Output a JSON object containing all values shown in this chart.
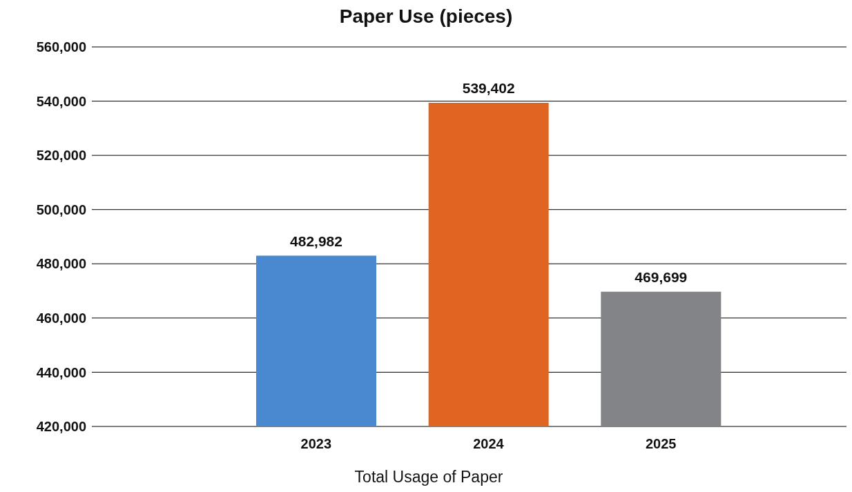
{
  "chart_data": {
    "type": "bar",
    "title": "Paper Use (pieces)",
    "xlabel": "Total Usage of Paper",
    "categories": [
      "2023",
      "2024",
      "2025"
    ],
    "values": [
      482982,
      539402,
      469699
    ],
    "value_labels": [
      "482,982",
      "539,402",
      "469,699"
    ],
    "colors": [
      "#4a89cf",
      "#e06522",
      "#838487"
    ],
    "ylim": [
      420000,
      560000
    ],
    "yticks": [
      {
        "value": 420000,
        "label": "420,000"
      },
      {
        "value": 440000,
        "label": "440,000"
      },
      {
        "value": 460000,
        "label": "460,000"
      },
      {
        "value": 480000,
        "label": "480,000"
      },
      {
        "value": 500000,
        "label": "500,000"
      },
      {
        "value": 520000,
        "label": "520,000"
      },
      {
        "value": 540000,
        "label": "540,000"
      },
      {
        "value": 560000,
        "label": "560,000"
      }
    ],
    "grid": "y"
  }
}
